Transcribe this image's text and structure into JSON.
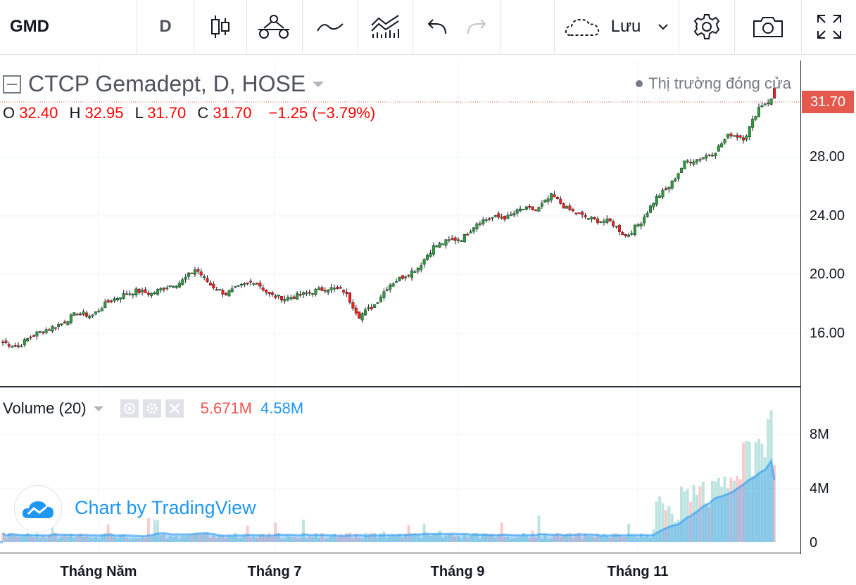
{
  "toolbar": {
    "symbol": "GMD",
    "interval": "D",
    "save_label": "Lưu",
    "icons": [
      "candles-icon",
      "indicators-icon",
      "compare-icon",
      "templates-icon",
      "undo-icon",
      "redo-icon",
      "cloud-icon",
      "settings-icon",
      "camera-icon",
      "fullscreen-icon"
    ]
  },
  "legend": {
    "title": "CTCP Gemadept, D, HOSE",
    "market_status": "Thị trường đóng cửa",
    "o_label": "O",
    "o_value": "32.40",
    "h_label": "H",
    "h_value": "32.95",
    "l_label": "L",
    "l_value": "31.70",
    "c_label": "C",
    "c_value": "31.70",
    "change": "−1.25 (−3.79%)"
  },
  "last_price": "31.70",
  "price_axis": [
    "28.00",
    "24.00",
    "20.00",
    "16.00"
  ],
  "volume": {
    "name": "Volume (20)",
    "value": "5.671M",
    "ma_value": "4.58M",
    "axis": [
      "8M",
      "4M",
      "0"
    ]
  },
  "time_axis": [
    "Tháng Năm",
    "Tháng 7",
    "Tháng 9",
    "Tháng 11"
  ],
  "watermark": "Chart by TradingView",
  "colors": {
    "up": "#26a69a",
    "down": "#ef5350",
    "up_candle": "#2e9c3a",
    "down_candle": "#ff1a1a",
    "accent": "#2196f3",
    "last_price_bg": "#e4584e"
  },
  "chart_data": {
    "type": "candlestick",
    "series": [
      {
        "name": "CTCP Gemadept",
        "close_approx": [
          15.1,
          14.8,
          15.6,
          16.0,
          16.4,
          17.1,
          16.9,
          17.8,
          18.3,
          18.6,
          18.4,
          18.9,
          19.2,
          20.1,
          19.0,
          18.4,
          18.9,
          19.3,
          18.3,
          18.1,
          18.3,
          18.6,
          18.8,
          18.6,
          16.9,
          17.6,
          19.0,
          19.6,
          20.2,
          21.6,
          22.0,
          22.2,
          23.3,
          23.6,
          23.6,
          24.2,
          24.1,
          25.1,
          24.2,
          23.7,
          23.4,
          23.3,
          22.3,
          23.3,
          24.9,
          25.8,
          27.4,
          27.6,
          28.1,
          29.3,
          29.0,
          31.2,
          31.7
        ]
      }
    ],
    "price_range": [
      13,
      33
    ],
    "volume_axis_max": "8M",
    "volume_ma_period": 20,
    "last_volume": "5.671M",
    "last_volume_ma": "4.58M"
  }
}
